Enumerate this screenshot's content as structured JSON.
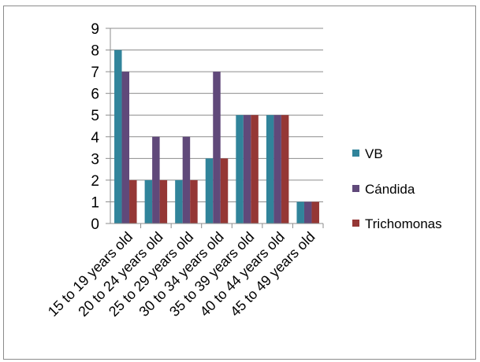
{
  "colors": {
    "VB": "#31849b",
    "Candida": "#60497a",
    "Trichomonas": "#953735",
    "gridline": "#8c8c8c"
  },
  "chart_data": {
    "type": "bar",
    "categories": [
      "15 to 19 years old",
      "20 to 24 years old",
      "25 to 29 years old",
      "30 to 34 years old",
      "35 to 39 years old",
      "40 to 44 years old",
      "45 to 49 years old"
    ],
    "series": [
      {
        "name": "VB",
        "values": [
          8,
          2,
          2,
          3,
          5,
          5,
          1
        ]
      },
      {
        "name": "Cándida",
        "values": [
          7,
          4,
          4,
          7,
          5,
          5,
          1
        ]
      },
      {
        "name": "Trichomonas",
        "values": [
          2,
          2,
          2,
          3,
          5,
          5,
          1
        ]
      }
    ],
    "yticks": [
      0,
      1,
      2,
      3,
      4,
      5,
      6,
      7,
      8,
      9
    ],
    "ylim": [
      0,
      9
    ],
    "grid": true,
    "legend_position": "right"
  }
}
